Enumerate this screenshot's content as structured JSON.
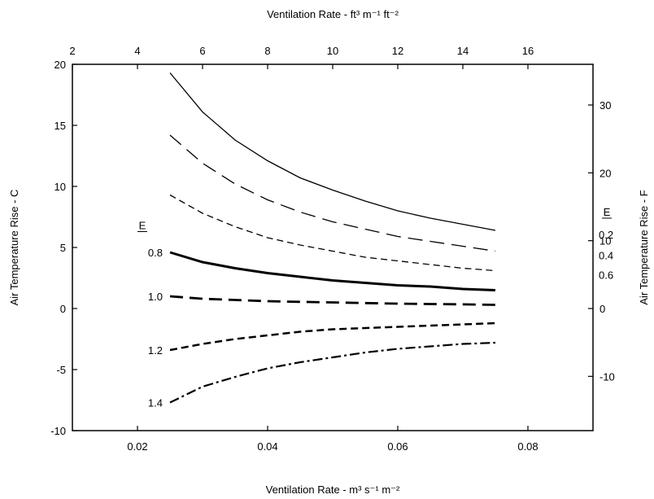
{
  "chart_data": {
    "type": "line",
    "xlabel_bottom": "Ventilation Rate - m³ s⁻¹ m⁻²",
    "xlabel_top": "Ventilation Rate - ft³ m⁻¹ ft⁻²",
    "ylabel_left": "Air Temperature Rise - C",
    "ylabel_right": "Air Temperature Rise - F",
    "xlim": [
      0.01,
      0.09
    ],
    "ylim": [
      -10,
      20
    ],
    "x_ticks": [
      0.02,
      0.04,
      0.06,
      0.08
    ],
    "x_tick_labels": [
      "0.02",
      "0.04",
      "0.06",
      "0.08"
    ],
    "y_ticks": [
      -10,
      -5,
      0,
      5,
      10,
      15,
      20
    ],
    "y_tick_labels": [
      "-10",
      "-5",
      "0",
      "5",
      "10",
      "15",
      "20"
    ],
    "top_xlim": [
      2,
      18
    ],
    "top_ticks": [
      2,
      4,
      6,
      8,
      10,
      12,
      14,
      16
    ],
    "top_tick_labels": [
      "2",
      "4",
      "6",
      "8",
      "10",
      "12",
      "14",
      "16"
    ],
    "right_ylim": [
      -18,
      36
    ],
    "right_ticks": [
      -10,
      0,
      10,
      20,
      30
    ],
    "right_tick_labels": [
      "-10",
      "0",
      "10",
      "20",
      "30"
    ],
    "grid": false,
    "legend": "none",
    "x_series": [
      0.025,
      0.03,
      0.035,
      0.04,
      0.045,
      0.05,
      0.055,
      0.06,
      0.065,
      0.07,
      0.075
    ],
    "series": [
      {
        "name": "0.2",
        "style": "solid",
        "values": [
          19.3,
          16.1,
          13.8,
          12.1,
          10.7,
          9.7,
          8.8,
          8.0,
          7.4,
          6.9,
          6.4
        ]
      },
      {
        "name": "0.4",
        "style": "long-dash",
        "values": [
          14.2,
          11.9,
          10.2,
          8.9,
          7.9,
          7.1,
          6.5,
          5.9,
          5.5,
          5.1,
          4.7
        ]
      },
      {
        "name": "0.6",
        "style": "medium-dash",
        "values": [
          9.3,
          7.8,
          6.7,
          5.8,
          5.2,
          4.7,
          4.2,
          3.9,
          3.6,
          3.3,
          3.1
        ]
      },
      {
        "name": "0.8",
        "style": "bold-solid",
        "values": [
          4.6,
          3.8,
          3.3,
          2.9,
          2.6,
          2.3,
          2.1,
          1.9,
          1.8,
          1.6,
          1.5
        ]
      },
      {
        "name": "1.0",
        "style": "bold-long-dash",
        "values": [
          1.0,
          0.8,
          0.7,
          0.6,
          0.55,
          0.5,
          0.45,
          0.4,
          0.37,
          0.34,
          0.3
        ]
      },
      {
        "name": "1.2",
        "style": "bold-short-dash",
        "values": [
          -3.4,
          -2.9,
          -2.5,
          -2.2,
          -1.9,
          -1.7,
          -1.6,
          -1.5,
          -1.4,
          -1.3,
          -1.2
        ]
      },
      {
        "name": "1.4",
        "style": "dash-dot",
        "values": [
          -7.7,
          -6.4,
          -5.6,
          -4.9,
          -4.4,
          -4.0,
          -3.6,
          -3.3,
          -3.1,
          -2.9,
          -2.8
        ]
      }
    ],
    "annotations": {
      "e_header": "E",
      "left_labels": [
        "0.8",
        "1.0",
        "1.2",
        "1.4"
      ],
      "right_labels": [
        "0.2",
        "0.4",
        "0.6"
      ]
    }
  }
}
